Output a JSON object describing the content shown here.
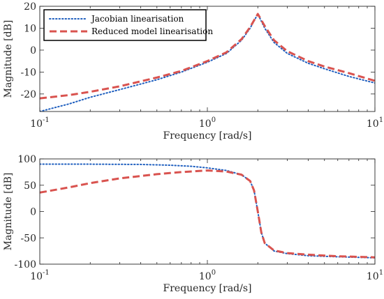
{
  "chart_data": [
    {
      "type": "line",
      "xscale": "log",
      "xlim": [
        0.1,
        10
      ],
      "ylim": [
        -28,
        20
      ],
      "xlabel": "Frequency [rad/s]",
      "ylabel": "Magnitude [dB]",
      "x_ticks": [
        {
          "base": "10",
          "exp": "-1",
          "value": 0.1
        },
        {
          "base": "10",
          "exp": "0",
          "value": 1
        },
        {
          "base": "10",
          "exp": "1",
          "value": 10
        }
      ],
      "y_ticks": [
        {
          "label": "20",
          "value": 20
        },
        {
          "label": "10",
          "value": 10
        },
        {
          "label": "0",
          "value": 0
        },
        {
          "label": "-10",
          "value": -10
        },
        {
          "label": "-20",
          "value": -20
        }
      ],
      "legend": {
        "placement": "top-left",
        "entries": [
          "Jacobian linearisation",
          "Reduced model linearisation"
        ]
      },
      "series": [
        {
          "name": "Jacobian linearisation",
          "color": "#1f5fbf",
          "style": "dotted",
          "points": [
            [
              0.1,
              -28
            ],
            [
              0.15,
              -24.5
            ],
            [
              0.2,
              -21.5
            ],
            [
              0.3,
              -18
            ],
            [
              0.5,
              -13.5
            ],
            [
              0.7,
              -10
            ],
            [
              1.0,
              -5.5
            ],
            [
              1.3,
              -1.5
            ],
            [
              1.6,
              4.5
            ],
            [
              1.8,
              10
            ],
            [
              2.0,
              16.5
            ],
            [
              2.2,
              10
            ],
            [
              2.5,
              3.5
            ],
            [
              3.0,
              -1.5
            ],
            [
              4.0,
              -6
            ],
            [
              5.0,
              -8.5
            ],
            [
              7.0,
              -12
            ],
            [
              10,
              -15
            ]
          ]
        },
        {
          "name": "Reduced model linearisation",
          "color": "#d9534f",
          "style": "dashed",
          "points": [
            [
              0.1,
              -22
            ],
            [
              0.15,
              -20.5
            ],
            [
              0.2,
              -19
            ],
            [
              0.3,
              -16.5
            ],
            [
              0.5,
              -12.5
            ],
            [
              0.7,
              -9.5
            ],
            [
              1.0,
              -5
            ],
            [
              1.3,
              -1
            ],
            [
              1.6,
              5
            ],
            [
              1.8,
              10.5
            ],
            [
              2.0,
              16.5
            ],
            [
              2.2,
              11
            ],
            [
              2.5,
              4.5
            ],
            [
              3.0,
              -0.5
            ],
            [
              4.0,
              -5
            ],
            [
              5.0,
              -7.5
            ],
            [
              7.0,
              -10.5
            ],
            [
              10,
              -14
            ]
          ]
        }
      ]
    },
    {
      "type": "line",
      "xscale": "log",
      "xlim": [
        0.1,
        10
      ],
      "ylim": [
        -100,
        100
      ],
      "xlabel": "Frequency [rad/s]",
      "ylabel": "Magnitude [dB]",
      "x_ticks": [
        {
          "base": "10",
          "exp": "-1",
          "value": 0.1
        },
        {
          "base": "10",
          "exp": "0",
          "value": 1
        },
        {
          "base": "10",
          "exp": "1",
          "value": 10
        }
      ],
      "y_ticks": [
        {
          "label": "100",
          "value": 100
        },
        {
          "label": "50",
          "value": 50
        },
        {
          "label": "0",
          "value": 0
        },
        {
          "label": "-50",
          "value": -50
        },
        {
          "label": "-100",
          "value": -100
        }
      ],
      "series": [
        {
          "name": "Jacobian linearisation",
          "color": "#1f5fbf",
          "style": "dotted",
          "points": [
            [
              0.1,
              90
            ],
            [
              0.2,
              90
            ],
            [
              0.4,
              89.5
            ],
            [
              0.6,
              88
            ],
            [
              0.8,
              86
            ],
            [
              1.0,
              83
            ],
            [
              1.3,
              78
            ],
            [
              1.6,
              70
            ],
            [
              1.8,
              58
            ],
            [
              1.9,
              40
            ],
            [
              2.0,
              0
            ],
            [
              2.1,
              -40
            ],
            [
              2.2,
              -60
            ],
            [
              2.5,
              -75
            ],
            [
              3.0,
              -80
            ],
            [
              4.0,
              -84
            ],
            [
              6.0,
              -86
            ],
            [
              10,
              -88
            ]
          ]
        },
        {
          "name": "Reduced model linearisation",
          "color": "#d9534f",
          "style": "dashed",
          "points": [
            [
              0.1,
              36
            ],
            [
              0.15,
              46
            ],
            [
              0.2,
              54
            ],
            [
              0.3,
              63
            ],
            [
              0.5,
              71
            ],
            [
              0.7,
              75
            ],
            [
              1.0,
              78
            ],
            [
              1.3,
              76
            ],
            [
              1.6,
              70
            ],
            [
              1.8,
              58
            ],
            [
              1.9,
              40
            ],
            [
              2.0,
              0
            ],
            [
              2.1,
              -40
            ],
            [
              2.2,
              -60
            ],
            [
              2.5,
              -74
            ],
            [
              3.0,
              -79
            ],
            [
              4.0,
              -82
            ],
            [
              6.0,
              -85
            ],
            [
              10,
              -87
            ]
          ]
        }
      ]
    }
  ]
}
